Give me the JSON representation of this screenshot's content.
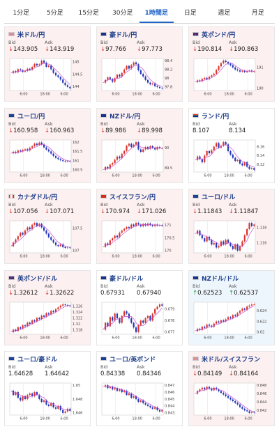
{
  "tabs": [
    {
      "label": "1分足",
      "active": false
    },
    {
      "label": "5分足",
      "active": false
    },
    {
      "label": "15分足",
      "active": false
    },
    {
      "label": "30分足",
      "active": false
    },
    {
      "label": "1時間足",
      "active": true
    },
    {
      "label": "日足",
      "active": false
    },
    {
      "label": "週足",
      "active": false
    },
    {
      "label": "月足",
      "active": false
    }
  ],
  "bid_label": "Bid",
  "ask_label": "Ask",
  "time_labels": [
    "6:00",
    "18:00",
    "6:00"
  ],
  "pairs": [
    {
      "name": "米ドル/円",
      "flag": "us",
      "bid": "143.905",
      "ask": "143.919",
      "dir": "down",
      "yticks": [
        "145",
        "144.5",
        "144"
      ],
      "series": [
        144.55,
        144.62,
        144.58,
        144.7,
        144.66,
        144.6,
        144.63,
        144.72,
        144.68,
        144.8,
        144.92,
        144.86,
        144.9,
        145.05,
        144.97,
        144.8,
        144.85,
        144.7,
        144.55,
        144.45,
        144.38,
        144.28,
        144.15,
        144.05,
        143.98,
        143.92
      ]
    },
    {
      "name": "豪ドル/円",
      "flag": "au",
      "bid": "97.766",
      "ask": "97.773",
      "dir": "down",
      "yticks": [
        "98.4",
        "98.2",
        "98",
        "97.8"
      ],
      "series": [
        97.9,
        97.96,
        98.02,
        97.98,
        97.92,
        98.0,
        98.08,
        98.04,
        98.12,
        98.2,
        98.28,
        98.22,
        98.3,
        98.36,
        98.32,
        98.18,
        98.1,
        98.04,
        97.96,
        97.9,
        97.86,
        97.88,
        97.82,
        97.8,
        97.78,
        97.77
      ]
    },
    {
      "name": "英ポンド/円",
      "flag": "gb",
      "bid": "190.814",
      "ask": "190.863",
      "dir": "down",
      "yticks": [
        "191",
        "190"
      ],
      "series": [
        190.3,
        190.38,
        190.34,
        190.45,
        190.5,
        190.44,
        190.55,
        190.62,
        190.7,
        190.88,
        191.05,
        191.2,
        191.32,
        191.26,
        191.18,
        191.1,
        191.0,
        190.9,
        190.86,
        190.8,
        190.84,
        190.78,
        190.82,
        190.85,
        190.8,
        190.81
      ]
    },
    {
      "name": "ユーロ/円",
      "flag": "eu",
      "bid": "160.958",
      "ask": "160.963",
      "dir": "down",
      "yticks": [
        "162",
        "161.5",
        "161",
        "160.5"
      ],
      "series": [
        161.4,
        161.48,
        161.42,
        161.55,
        161.5,
        161.58,
        161.62,
        161.55,
        161.7,
        161.78,
        161.92,
        161.85,
        161.98,
        161.88,
        161.72,
        161.6,
        161.5,
        161.38,
        161.25,
        161.15,
        161.08,
        161.02,
        160.98,
        160.95,
        160.97,
        160.96
      ]
    },
    {
      "name": "NZドル/円",
      "flag": "nz",
      "bid": "89.986",
      "ask": "89.998",
      "dir": "down",
      "yticks": [
        "90",
        "89.5"
      ],
      "series": [
        89.45,
        89.52,
        89.48,
        89.58,
        89.62,
        89.7,
        89.78,
        89.74,
        89.85,
        89.92,
        90.05,
        90.1,
        90.02,
        90.08,
        90.14,
        89.96,
        89.9,
        89.96,
        90.02,
        89.98,
        90.04,
        90.0,
        89.96,
        90.02,
        89.99,
        89.99
      ]
    },
    {
      "name": "ランド/円",
      "flag": "za",
      "bid": "8.107",
      "ask": "8.134",
      "dir": "flat",
      "yticks": [
        "8.16",
        "8.14",
        "8.12"
      ],
      "series": [
        8.13,
        8.138,
        8.132,
        8.125,
        8.14,
        8.15,
        8.145,
        8.152,
        8.16,
        8.168,
        8.158,
        8.162,
        8.17,
        8.165,
        8.15,
        8.142,
        8.135,
        8.128,
        8.13,
        8.122,
        8.118,
        8.125,
        8.115,
        8.11,
        8.112,
        8.108
      ]
    },
    {
      "name": "カナダドル/円",
      "flag": "ca",
      "bid": "107.056",
      "ask": "107.071",
      "dir": "down",
      "yticks": [
        "107.5",
        "107"
      ],
      "series": [
        107.1,
        107.18,
        107.25,
        107.32,
        107.4,
        107.36,
        107.45,
        107.52,
        107.48,
        107.58,
        107.62,
        107.55,
        107.6,
        107.52,
        107.45,
        107.38,
        107.3,
        107.24,
        107.18,
        107.12,
        107.1,
        107.14,
        107.08,
        107.06,
        107.07,
        107.06
      ]
    },
    {
      "name": "スイスフラン/円",
      "flag": "ch",
      "bid": "170.974",
      "ask": "171.026",
      "dir": "down",
      "yticks": [
        "171",
        "170.5",
        "170"
      ],
      "series": [
        170.15,
        170.28,
        170.22,
        170.4,
        170.48,
        170.58,
        170.52,
        170.7,
        170.78,
        170.85,
        170.92,
        170.88,
        171.02,
        170.96,
        171.08,
        171.02,
        170.95,
        171.04,
        170.98,
        171.06,
        171.0,
        170.96,
        171.02,
        170.98,
        171.0,
        170.97
      ]
    },
    {
      "name": "ユーロ/ドル",
      "flag": "eu",
      "bid": "1.11843",
      "ask": "1.11847",
      "dir": "down",
      "yticks": [
        "1.118",
        "1.116"
      ],
      "series": [
        1.1172,
        1.1176,
        1.117,
        1.1166,
        1.1162,
        1.1168,
        1.1164,
        1.1158,
        1.116,
        1.1154,
        1.1156,
        1.1162,
        1.1158,
        1.1164,
        1.116,
        1.1156,
        1.1152,
        1.1158,
        1.115,
        1.1156,
        1.1162,
        1.117,
        1.1178,
        1.1186,
        1.1182,
        1.1184
      ]
    },
    {
      "name": "英ポンド/ドル",
      "flag": "gb",
      "bid": "1.32612",
      "ask": "1.32622",
      "dir": "down",
      "yticks": [
        "1.326",
        "1.324",
        "1.322",
        "1.32",
        "1.318"
      ],
      "series": [
        1.3172,
        1.318,
        1.3176,
        1.3188,
        1.3184,
        1.3195,
        1.3192,
        1.3204,
        1.32,
        1.3212,
        1.3208,
        1.322,
        1.3216,
        1.3228,
        1.3224,
        1.3236,
        1.3232,
        1.3244,
        1.324,
        1.325,
        1.3256,
        1.3262,
        1.3266,
        1.3264,
        1.3262,
        1.3261
      ]
    },
    {
      "name": "豪ドル/ドル",
      "flag": "au",
      "bid": "0.67931",
      "ask": "0.67940",
      "dir": "flat",
      "yticks": [
        "0.679",
        "0.678",
        "0.677"
      ],
      "series": [
        0.6772,
        0.6778,
        0.6775,
        0.6783,
        0.678,
        0.6786,
        0.6782,
        0.6778,
        0.6784,
        0.6788,
        0.6786,
        0.6782,
        0.6778,
        0.6774,
        0.677,
        0.6776,
        0.678,
        0.6778,
        0.6782,
        0.6784,
        0.678,
        0.6786,
        0.679,
        0.6792,
        0.6794,
        0.6793
      ]
    },
    {
      "name": "NZドル/ドル",
      "flag": "nz",
      "bid": "0.62523",
      "ask": "0.62537",
      "dir": "up",
      "yticks": [
        "0.624",
        "0.622",
        "0.62"
      ],
      "series": [
        0.6202,
        0.6206,
        0.6204,
        0.621,
        0.6208,
        0.6214,
        0.6212,
        0.621,
        0.6216,
        0.622,
        0.6218,
        0.6222,
        0.622,
        0.6224,
        0.6228,
        0.6226,
        0.6232,
        0.623,
        0.6236,
        0.624,
        0.6244,
        0.6242,
        0.6248,
        0.625,
        0.6252,
        0.6252
      ]
    },
    {
      "name": "ユーロ/豪ドル",
      "flag": "eu",
      "bid": "1.64628",
      "ask": "1.64642",
      "dir": "flat",
      "yticks": [
        "1.65",
        "1.648",
        "1.646"
      ],
      "series": [
        1.6492,
        1.6486,
        1.649,
        1.6482,
        1.6478,
        1.6484,
        1.648,
        1.6486,
        1.6488,
        1.6484,
        1.649,
        1.6486,
        1.648,
        1.6476,
        1.6478,
        1.6472,
        1.647,
        1.6474,
        1.6468,
        1.6466,
        1.647,
        1.6464,
        1.646,
        1.6462,
        1.6466,
        1.6463
      ]
    },
    {
      "name": "ユーロ/英ポンド",
      "flag": "eu",
      "bid": "0.84338",
      "ask": "0.84346",
      "dir": "flat",
      "yticks": [
        "0.847",
        "0.846",
        "0.845",
        "0.844",
        "0.843"
      ],
      "series": [
        0.8468,
        0.847,
        0.8466,
        0.8468,
        0.8464,
        0.8466,
        0.8462,
        0.8464,
        0.846,
        0.8462,
        0.8456,
        0.8458,
        0.8452,
        0.8454,
        0.845,
        0.8446,
        0.8448,
        0.8444,
        0.8442,
        0.844,
        0.8438,
        0.8436,
        0.8438,
        0.8434,
        0.8432,
        0.8434
      ]
    },
    {
      "name": "米ドル/スイスフラン",
      "flag": "us",
      "bid": "0.84149",
      "ask": "0.84164",
      "dir": "down",
      "yticks": [
        "0.848",
        "0.846",
        "0.844",
        "0.842"
      ],
      "series": [
        0.846,
        0.8466,
        0.847,
        0.8474,
        0.847,
        0.8476,
        0.8472,
        0.8468,
        0.8474,
        0.847,
        0.8466,
        0.8462,
        0.8458,
        0.8454,
        0.845,
        0.8446,
        0.8442,
        0.8438,
        0.8434,
        0.8428,
        0.8424,
        0.842,
        0.8418,
        0.8414,
        0.8416,
        0.8415
      ]
    }
  ],
  "colors": {
    "up": "#d9342b",
    "down": "#2336b8",
    "ma": "#c84bd6",
    "grid": "#e2e2e2",
    "arrow_down": "#d9342b",
    "arrow_up": "#1e9b3c"
  }
}
